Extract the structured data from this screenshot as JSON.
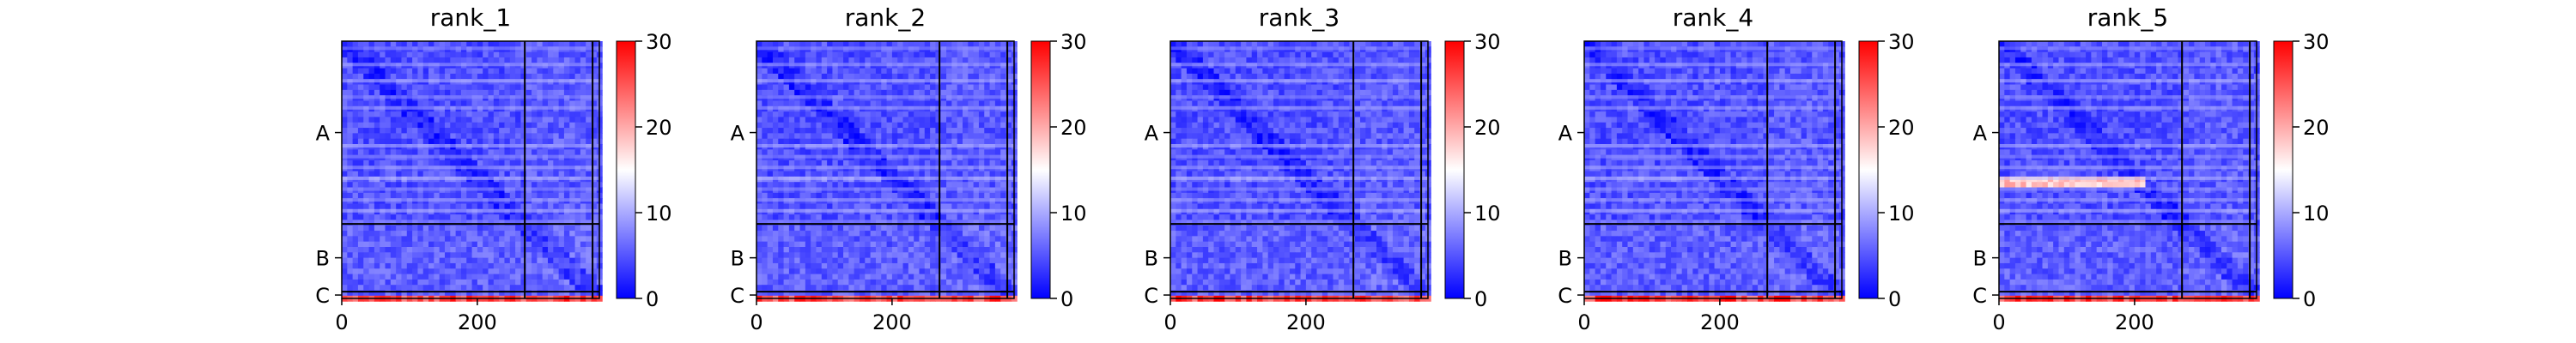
{
  "figure": {
    "type": "heatmap-grid",
    "colorbar": {
      "min": 0,
      "max": 30,
      "ticks": [
        0,
        10,
        20,
        30
      ],
      "colormap": [
        "#0000ff",
        "#ffffff",
        "#ff0000"
      ]
    },
    "row_labels": [
      "A",
      "B",
      "C"
    ],
    "x_ticks": [
      0,
      200
    ]
  },
  "chart_data": [
    {
      "type": "heatmap",
      "title": "rank_1",
      "xlabel": "",
      "ylabel": "",
      "xlim": [
        0,
        380
      ],
      "ylim": [
        0,
        380
      ],
      "segments": [
        {
          "label": "A",
          "start": 0,
          "end": 270
        },
        {
          "label": "B",
          "start": 270,
          "end": 370
        },
        {
          "label": "C",
          "start": 370,
          "end": 380
        }
      ],
      "vmin": 0,
      "vmax": 30,
      "grid": false
    },
    {
      "type": "heatmap",
      "title": "rank_2",
      "xlabel": "",
      "ylabel": "",
      "xlim": [
        0,
        380
      ],
      "ylim": [
        0,
        380
      ],
      "segments": [
        {
          "label": "A",
          "start": 0,
          "end": 270
        },
        {
          "label": "B",
          "start": 270,
          "end": 370
        },
        {
          "label": "C",
          "start": 370,
          "end": 380
        }
      ],
      "vmin": 0,
      "vmax": 30,
      "grid": false
    },
    {
      "type": "heatmap",
      "title": "rank_3",
      "xlabel": "",
      "ylabel": "",
      "xlim": [
        0,
        380
      ],
      "ylim": [
        0,
        380
      ],
      "segments": [
        {
          "label": "A",
          "start": 0,
          "end": 270
        },
        {
          "label": "B",
          "start": 270,
          "end": 370
        },
        {
          "label": "C",
          "start": 370,
          "end": 380
        }
      ],
      "vmin": 0,
      "vmax": 30,
      "grid": false
    },
    {
      "type": "heatmap",
      "title": "rank_4",
      "xlabel": "",
      "ylabel": "",
      "xlim": [
        0,
        380
      ],
      "ylim": [
        0,
        380
      ],
      "segments": [
        {
          "label": "A",
          "start": 0,
          "end": 270
        },
        {
          "label": "B",
          "start": 270,
          "end": 370
        },
        {
          "label": "C",
          "start": 370,
          "end": 380
        }
      ],
      "vmin": 0,
      "vmax": 30,
      "grid": false
    },
    {
      "type": "heatmap",
      "title": "rank_5",
      "xlabel": "",
      "ylabel": "",
      "xlim": [
        0,
        380
      ],
      "ylim": [
        0,
        380
      ],
      "segments": [
        {
          "label": "A",
          "start": 0,
          "end": 270
        },
        {
          "label": "B",
          "start": 270,
          "end": 370
        },
        {
          "label": "C",
          "start": 370,
          "end": 380
        }
      ],
      "vmin": 0,
      "vmax": 30,
      "grid": false
    }
  ]
}
